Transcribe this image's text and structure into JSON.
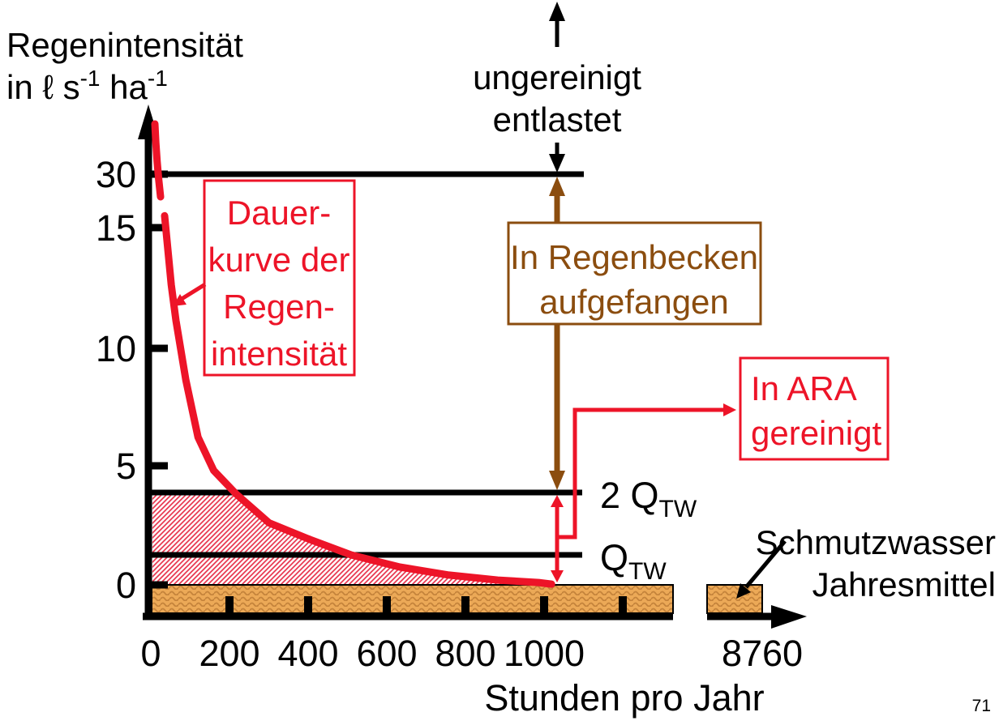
{
  "page": {
    "background": "#FFFFFF",
    "page_number": "71"
  },
  "colors": {
    "red": "#ED1428",
    "brown": "#8B4D0F",
    "black": "#000000",
    "sand_fill": "#ECA957",
    "sand_wave": "#C4833B",
    "hatch_line": "#E8374F"
  },
  "y_axis": {
    "title_line1": "Regenintensität",
    "title_line2_parts": {
      "pre": "in ℓ s",
      "sup1": "-1",
      "mid": " ha",
      "sup2": "-1"
    },
    "tick_labels": [
      "30",
      "15",
      "10",
      "5",
      "0"
    ]
  },
  "x_axis": {
    "title": "Stunden pro Jahr",
    "tick_labels": [
      "0",
      "200",
      "400",
      "600",
      "800",
      "1000"
    ],
    "far_tick_label": "8760"
  },
  "annotations": {
    "curve_label": {
      "lines": [
        "Dauer-",
        "kurve der",
        "Regen-",
        "intensität"
      ]
    },
    "ungereinigt": {
      "lines": [
        "ungereinigt",
        "entlastet"
      ]
    },
    "regenbecken": {
      "lines": [
        "In Regenbecken",
        "aufgefangen"
      ]
    },
    "ara": {
      "lines": [
        "In ARA",
        "gereinigt"
      ]
    },
    "q2tw": {
      "main": "2 Q",
      "sub": "TW"
    },
    "qtw": {
      "main": "Q",
      "sub": "TW"
    },
    "schmutzwasser": {
      "lines": [
        "Schmutzwasser",
        "Jahresmittel"
      ]
    }
  },
  "chart_data": {
    "type": "line",
    "title": "Dauerkurve der Regenintensität",
    "xlabel": "Stunden pro Jahr",
    "ylabel": "Regenintensität in ℓ s⁻¹ ha⁻¹",
    "x_ticks": [
      0,
      200,
      400,
      600,
      800,
      1000,
      8760
    ],
    "y_ticks": [
      0,
      5,
      10,
      15,
      30
    ],
    "x_axis_break": "between ~1340 h and 8760 h",
    "y_axis_break": "between 15 and 30",
    "grid": false,
    "series": [
      {
        "name": "Dauerkurve der Regenintensität",
        "color": "#ED1428",
        "x": [
          35,
          52,
          64,
          89,
          120,
          160,
          218,
          301,
          405,
          509,
          633,
          758,
          882,
          986,
          1019
        ],
        "y": [
          15.5,
          12.6,
          11.1,
          8.6,
          6.2,
          4.8,
          3.8,
          2.6,
          1.9,
          1.26,
          0.75,
          0.41,
          0.2,
          0.1,
          0.03
        ]
      }
    ],
    "reference_lines": [
      {
        "label": "Entlastungsgrenze (ungereinigt entlastet oberhalb)",
        "value": 30
      },
      {
        "label": "2 QTW",
        "value": 3.9
      },
      {
        "label": "QTW",
        "value": 1.3
      }
    ],
    "regions": [
      {
        "name": "In ARA gereinigt",
        "description": "rot schraffierte Fläche zwischen Nulllinie und min(Dauerkurve, 2 QTW), 0–1020 h"
      },
      {
        "name": "In Regenbecken aufgefangen",
        "description": "Bereich zwischen 2 QTW und 30 ℓ s⁻¹ ha⁻¹ bei ~1035 h"
      },
      {
        "name": "Schmutzwasser Jahresmittel",
        "description": "Sandfarbenes Band unterhalb der Nulllinie über das ganze Jahr (0–8760 h)"
      }
    ]
  }
}
